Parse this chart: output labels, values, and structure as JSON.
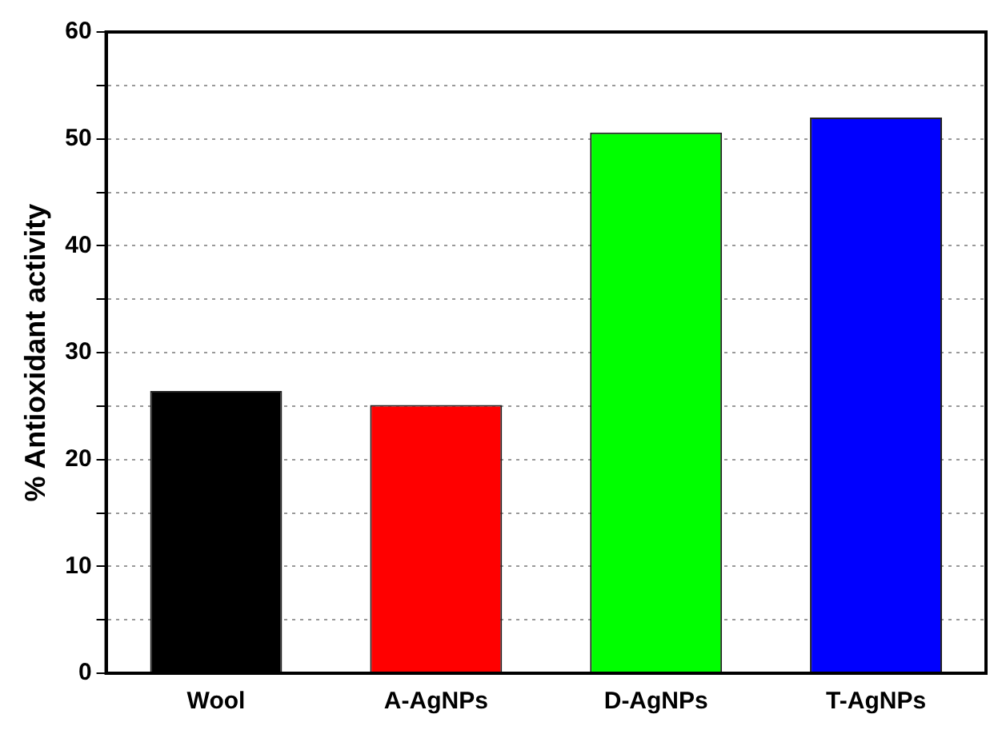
{
  "chart_data": {
    "type": "bar",
    "ylabel": "% Antioxidant activity",
    "categories": [
      "Wool",
      "A-AgNPs",
      "D-AgNPs",
      "T-AgNPs"
    ],
    "values": [
      26.4,
      25.1,
      50.6,
      52.0
    ],
    "colors": [
      "#000000",
      "#ff0000",
      "#00ff00",
      "#0000ff"
    ],
    "ylim": [
      0,
      60
    ],
    "yticks": [
      0,
      {
        "value": 5,
        "label": null
      },
      10,
      {
        "value": 15,
        "label": null
      },
      20,
      {
        "value": 25,
        "label": null
      },
      30,
      {
        "value": 35,
        "label": null
      },
      40,
      {
        "value": 45,
        "label": null
      },
      50,
      {
        "value": 55,
        "label": null
      },
      60
    ],
    "grid": "y",
    "line_style": "dotted",
    "legend": false
  }
}
